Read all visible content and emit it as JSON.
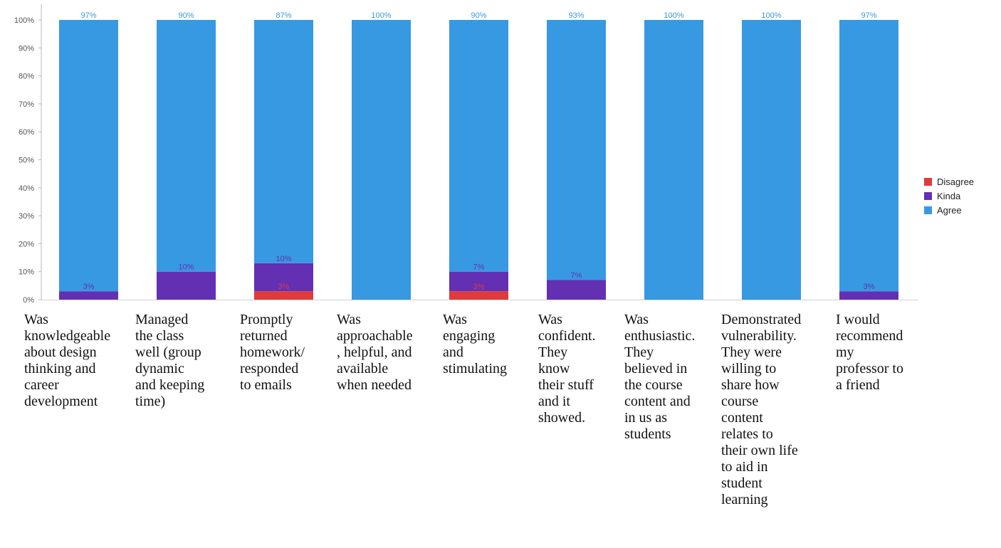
{
  "chart_data": {
    "type": "bar",
    "stacked": true,
    "categories": [
      "Was\nknowledgeable\nabout design\nthinking and\ncareer\ndevelopment",
      "Managed\nthe class\nwell (group\ndynamic\nand keeping\ntime)",
      "Promptly\nreturned\nhomework/\nresponded\nto emails",
      "Was\napproachable\n, helpful, and\navailable\nwhen needed",
      "Was\nengaging\nand\nstimulating",
      "Was\nconfident.\nThey\nknow\ntheir stuff\nand it\nshowed.",
      "Was\nenthusiastic.\nThey\nbelieved in\nthe course\ncontent and\nin us as\nstudents",
      "Demonstrated\nvulnerability.\nThey were\nwilling to\nshare how\ncourse\ncontent\nrelates to\ntheir own life\nto aid in\nstudent\nlearning",
      "I would\nrecommend\nmy\nprofessor to\na friend"
    ],
    "series": [
      {
        "name": "Disagree",
        "color": "#e03a3a",
        "values": [
          0,
          0,
          3,
          0,
          3,
          0,
          0,
          0,
          0
        ]
      },
      {
        "name": "Kinda",
        "color": "#6330b4",
        "values": [
          3,
          10,
          10,
          0,
          7,
          7,
          0,
          0,
          3
        ]
      },
      {
        "name": "Agree",
        "color": "#3799e1",
        "values": [
          97,
          90,
          87,
          100,
          90,
          93,
          100,
          100,
          97
        ]
      }
    ],
    "y_ticks": [
      "0%",
      "10%",
      "20%",
      "30%",
      "40%",
      "50%",
      "60%",
      "70%",
      "80%",
      "90%",
      "100%"
    ],
    "ylim": [
      0,
      100
    ],
    "legend_position": "right",
    "grid": false
  }
}
